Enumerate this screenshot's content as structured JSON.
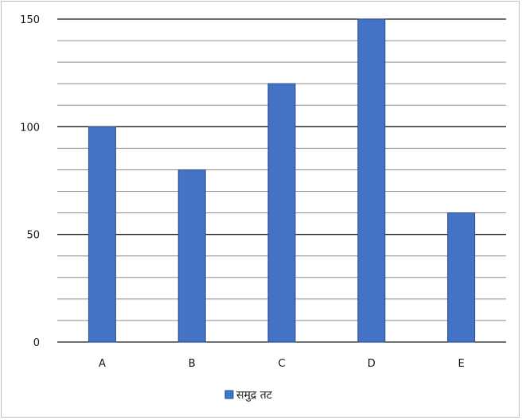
{
  "chart_data": {
    "type": "bar",
    "categories": [
      "A",
      "B",
      "C",
      "D",
      "E"
    ],
    "series": [
      {
        "name": "समुद्र तट",
        "values": [
          100,
          80,
          120,
          150,
          60
        ],
        "color": "#4472C4"
      }
    ],
    "ylim": [
      0,
      150
    ],
    "yticks": [
      0,
      50,
      100,
      150
    ],
    "grid": true,
    "legend": "bottom",
    "title": "",
    "xlabel": "",
    "ylabel": ""
  }
}
